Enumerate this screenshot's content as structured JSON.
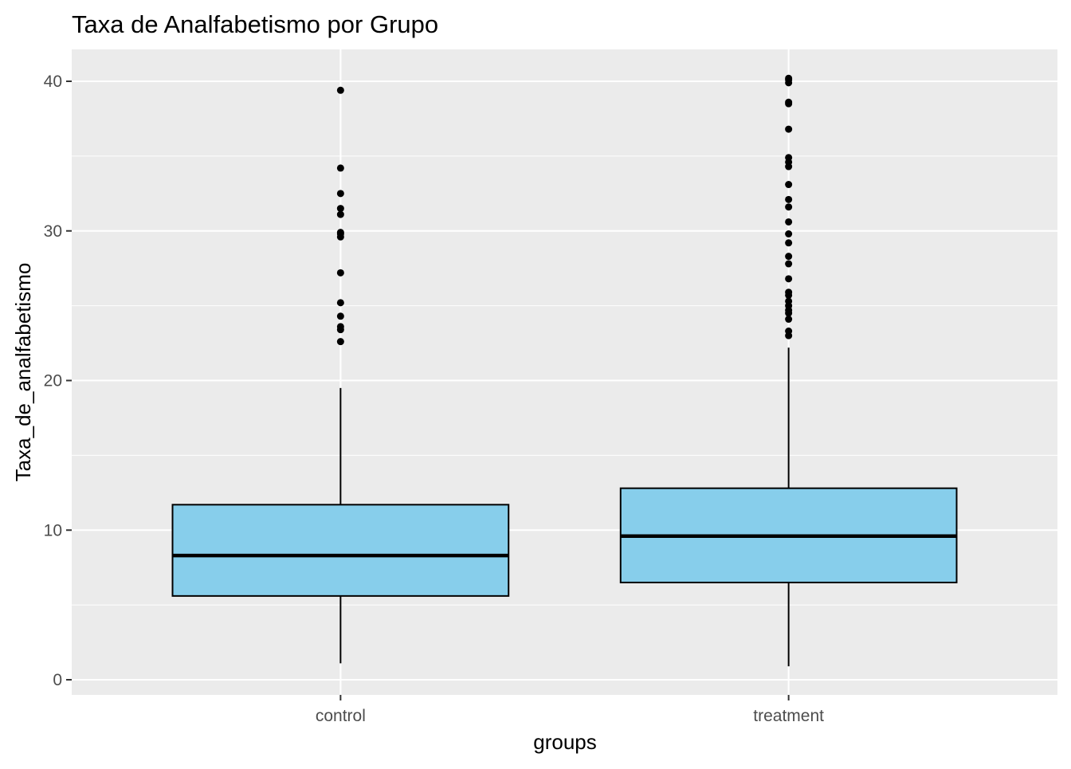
{
  "chart_data": {
    "type": "boxplot",
    "title": "Taxa de Analfabetismo por Grupo",
    "xlabel": "groups",
    "ylabel": "Taxa_de_analfabetismo",
    "categories": [
      "control",
      "treatment"
    ],
    "ylim": [
      -1.1,
      42.1
    ],
    "y_ticks": [
      0,
      10,
      20,
      30,
      40
    ],
    "y_minor_ticks": [
      5,
      15,
      25,
      35
    ],
    "grid": true,
    "legend": "none",
    "box_fill": "#87CEEB",
    "panel_background": "#EBEBEB",
    "grid_color": "#FFFFFF",
    "boxes": [
      {
        "group": "control",
        "whisker_low": 1.1,
        "q1": 5.6,
        "median": 8.3,
        "q3": 11.7,
        "whisker_high": 19.5,
        "outliers": [
          22.6,
          23.4,
          23.6,
          24.3,
          25.2,
          27.2,
          29.6,
          29.8,
          29.9,
          31.1,
          31.5,
          32.5,
          34.2,
          39.4
        ]
      },
      {
        "group": "treatment",
        "whisker_low": 0.9,
        "q1": 6.5,
        "median": 9.6,
        "q3": 12.8,
        "whisker_high": 22.2,
        "outliers": [
          23.0,
          23.3,
          24.1,
          24.5,
          24.7,
          25.0,
          25.3,
          25.7,
          25.9,
          26.8,
          27.8,
          28.3,
          29.2,
          29.8,
          30.6,
          31.6,
          32.1,
          33.1,
          34.3,
          34.6,
          34.9,
          36.8,
          38.5,
          38.6,
          39.9,
          40.1,
          40.2
        ]
      }
    ]
  }
}
